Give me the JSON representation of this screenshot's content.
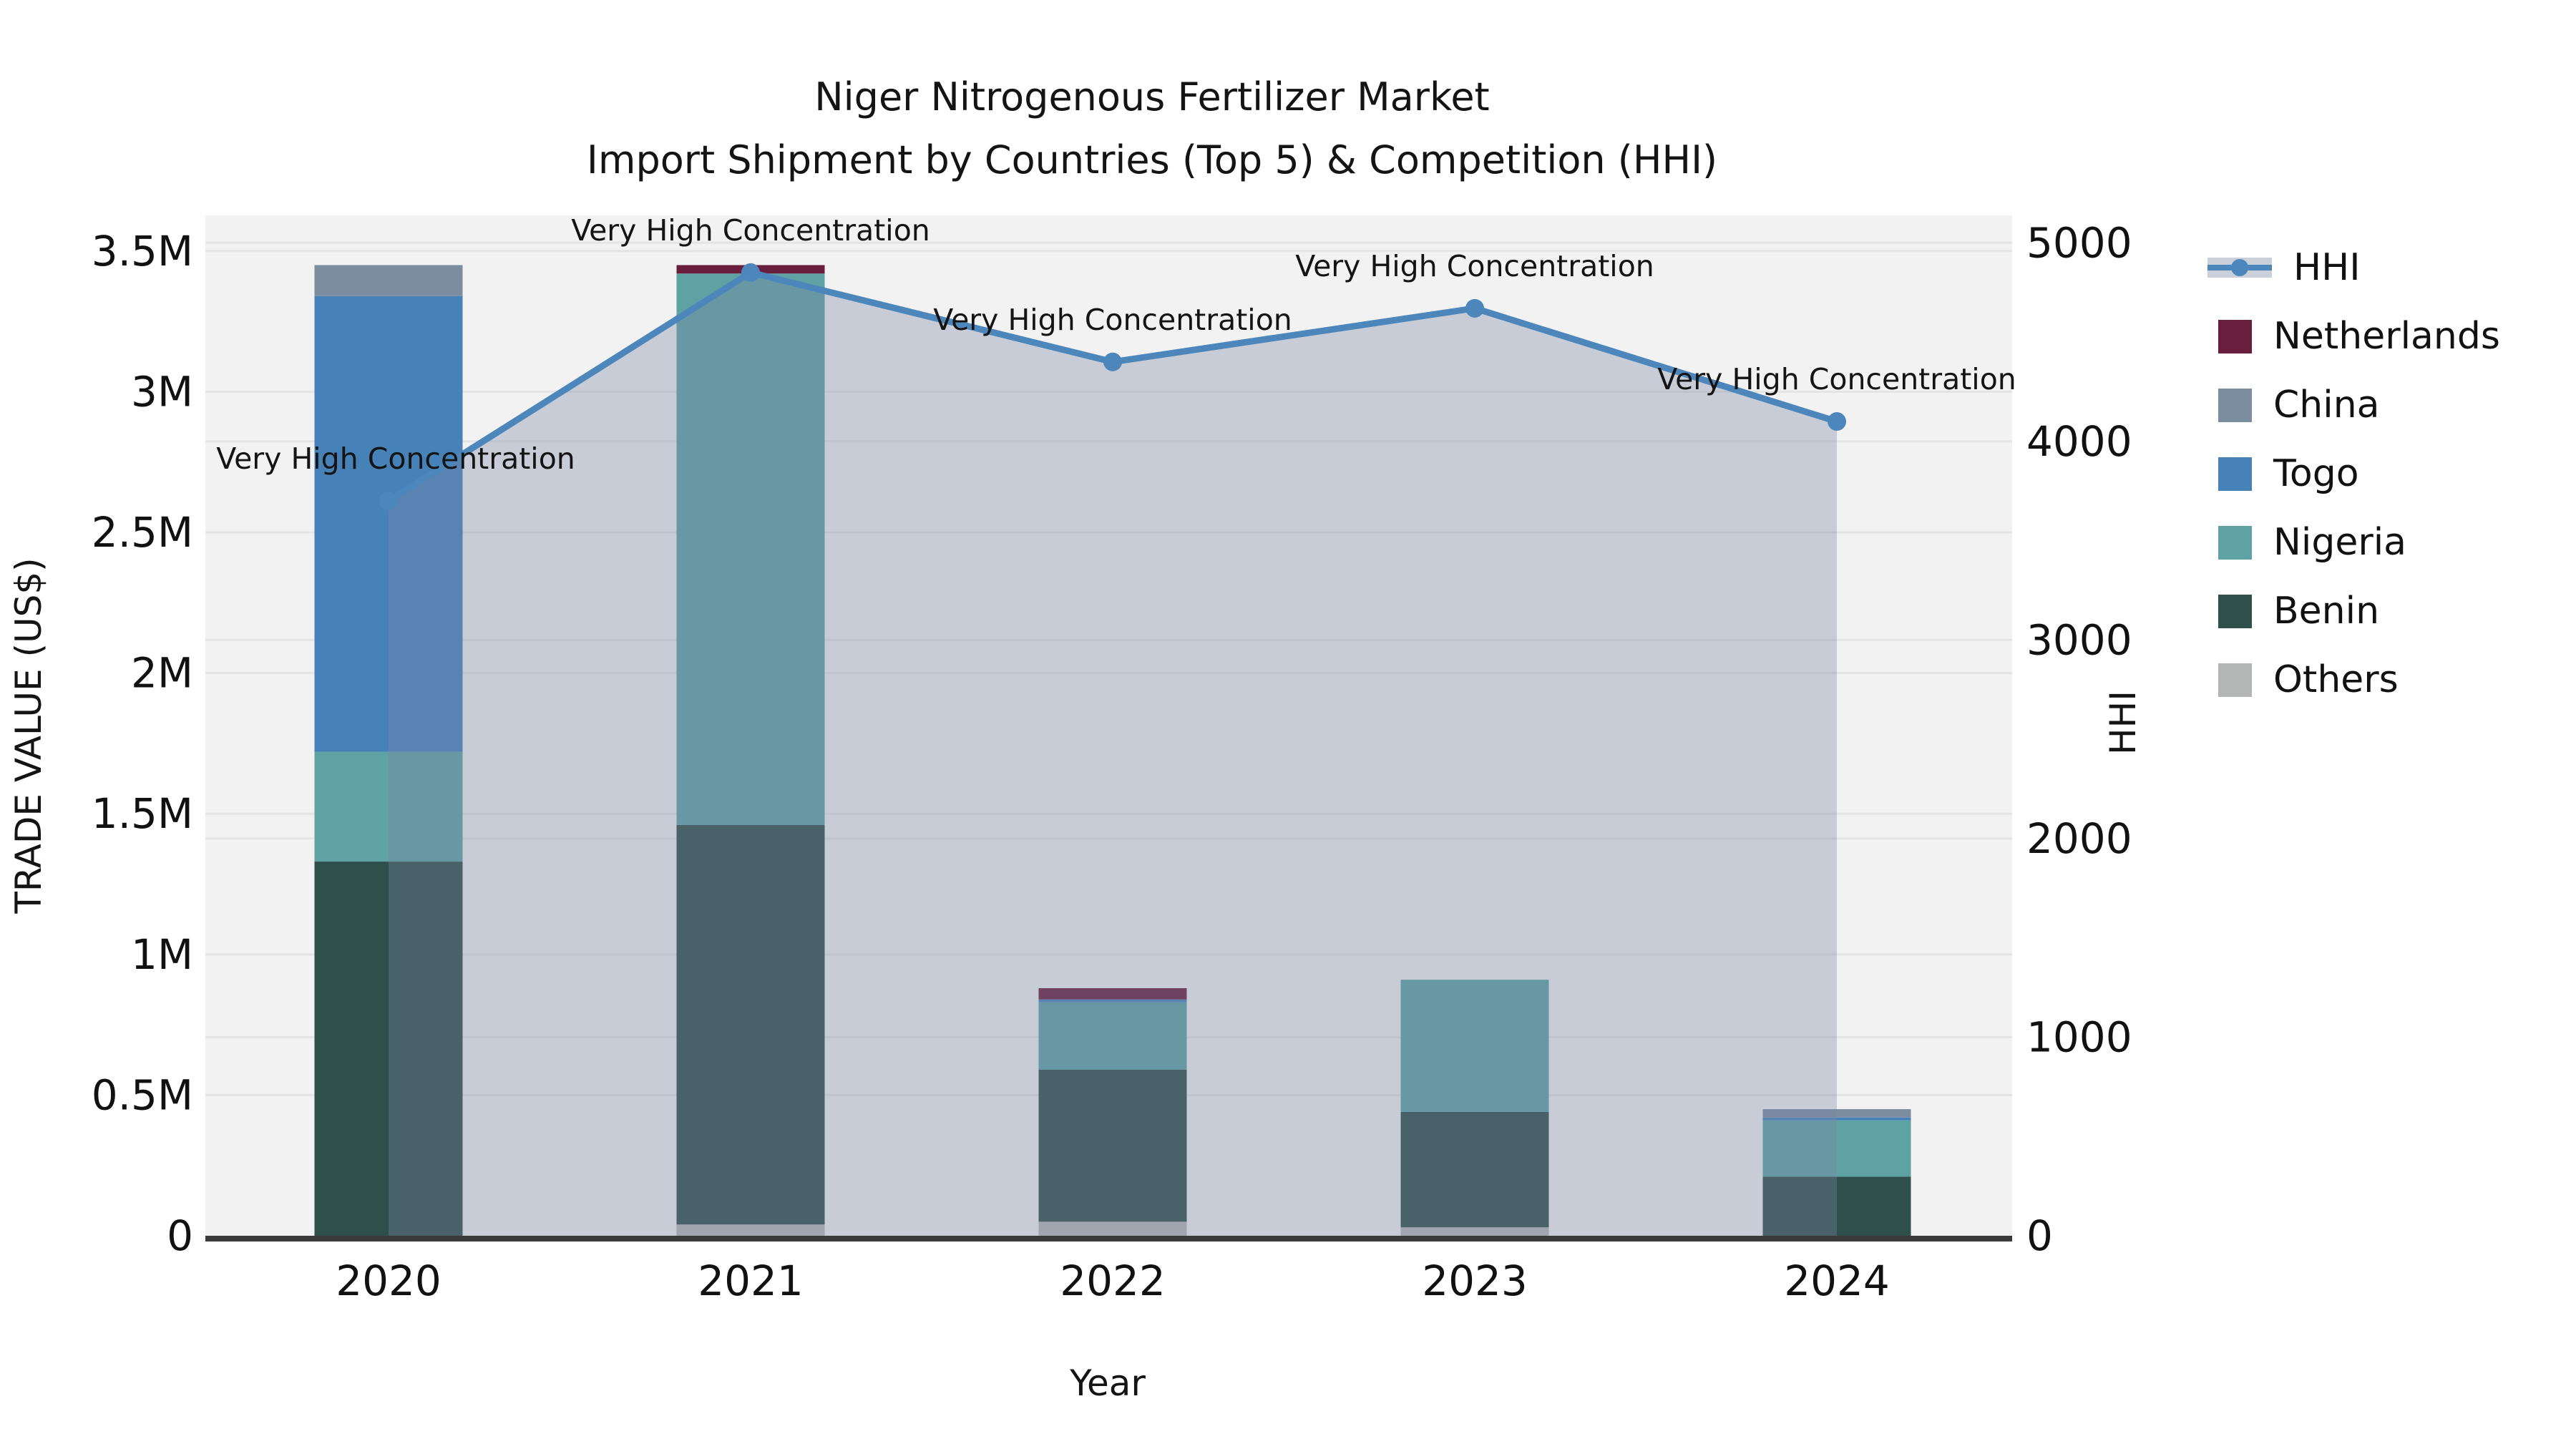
{
  "title": {
    "line1": "Niger Nitrogenous Fertilizer Market",
    "line2": "Import Shipment by Countries (Top 5) & Competition (HHI)"
  },
  "axes": {
    "x_label": "Year",
    "y_left_label": "TRADE VALUE (US$)",
    "y_right_label": "HHI",
    "y_left_ticks": [
      "0",
      "0.5M",
      "1M",
      "1.5M",
      "2M",
      "2.5M",
      "3M",
      "3.5M"
    ],
    "y_left_tick_values": [
      0,
      0.5,
      1,
      1.5,
      2,
      2.5,
      3,
      3.5
    ],
    "y_right_ticks": [
      "0",
      "1000",
      "2000",
      "3000",
      "4000",
      "5000"
    ],
    "y_right_tick_values": [
      0,
      1000,
      2000,
      3000,
      4000,
      5000
    ],
    "x_ticks": [
      "2020",
      "2021",
      "2022",
      "2023",
      "2024"
    ]
  },
  "chart_data": {
    "type": "bar+line",
    "title": "Niger Nitrogenous Fertilizer Market — Import Shipment by Countries (Top 5) & Competition (HHI)",
    "categories": [
      2020,
      2021,
      2022,
      2023,
      2024
    ],
    "unit_left": "Trade value, USD millions",
    "unit_right": "HHI index",
    "ylim_left": [
      0,
      3.5
    ],
    "ylim_right": [
      0,
      5000
    ],
    "grid": true,
    "legend_position": "outside-right-top",
    "stack_order_bottom_to_top": [
      "Others",
      "Benin",
      "Nigeria",
      "Togo",
      "China",
      "Netherlands"
    ],
    "series": [
      {
        "name": "Netherlands",
        "values": [
          0,
          0.03,
          0.04,
          0,
          0
        ]
      },
      {
        "name": "China",
        "values": [
          0.11,
          0,
          0,
          0,
          0.03
        ]
      },
      {
        "name": "Togo",
        "values": [
          1.62,
          0,
          0.01,
          0,
          0.01
        ]
      },
      {
        "name": "Nigeria",
        "values": [
          0.39,
          1.96,
          0.24,
          0.47,
          0.2
        ]
      },
      {
        "name": "Benin",
        "values": [
          1.33,
          1.42,
          0.54,
          0.41,
          0.21
        ]
      },
      {
        "name": "Others",
        "values": [
          0,
          0.04,
          0.05,
          0.03,
          0
        ]
      }
    ],
    "bar_totals": [
      3.45,
      3.45,
      0.88,
      0.91,
      0.45
    ],
    "hhi": {
      "name": "HHI",
      "values": [
        3700,
        4850,
        4400,
        4670,
        4100
      ],
      "has_area_fill": true
    },
    "annotations": [
      {
        "year": 2020,
        "text": "Very High Concentration"
      },
      {
        "year": 2021,
        "text": "Very High Concentration"
      },
      {
        "year": 2022,
        "text": "Very High Concentration"
      },
      {
        "year": 2023,
        "text": "Very High Concentration"
      },
      {
        "year": 2024,
        "text": "Very High Concentration"
      }
    ],
    "colors": {
      "Netherlands": "#6a1e3e",
      "China": "#7c8da0",
      "Togo": "#4682b8",
      "Nigeria": "#5fa2a3",
      "Benin": "#2f4f4b",
      "Others": "#b4b6b5",
      "hhi_line": "#4c86bb",
      "hhi_area": "rgba(122,136,165,0.35)",
      "legend_band": "#c9d0da",
      "plot_background": "#f2f2f2",
      "gridline": "#e4e4e4",
      "axis_spine": "#3a3a3a"
    }
  },
  "legend": {
    "items": [
      {
        "label": "HHI",
        "type": "line"
      },
      {
        "label": "Netherlands",
        "type": "patch"
      },
      {
        "label": "China",
        "type": "patch"
      },
      {
        "label": "Togo",
        "type": "patch"
      },
      {
        "label": "Nigeria",
        "type": "patch"
      },
      {
        "label": "Benin",
        "type": "patch"
      },
      {
        "label": "Others",
        "type": "patch"
      }
    ]
  }
}
